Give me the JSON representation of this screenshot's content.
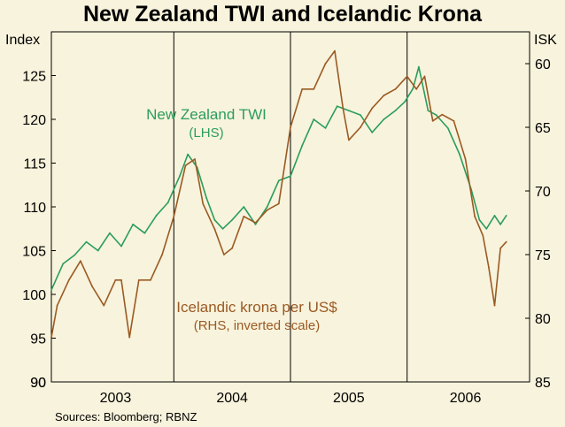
{
  "chart_data": {
    "type": "line",
    "title": "New Zealand TWI and Icelandic Krona",
    "source": "Sources: Bloomberg; RBNZ",
    "left_axis": {
      "unit": "Index",
      "min": 90,
      "max": 130,
      "ticks": [
        90,
        95,
        100,
        105,
        110,
        115,
        120,
        125
      ]
    },
    "right_axis": {
      "unit": "ISK",
      "min": 57.5,
      "max": 85,
      "inverted": true,
      "ticks": [
        60,
        65,
        70,
        75,
        80,
        85
      ]
    },
    "x_axis": {
      "min": 2002.45,
      "max": 2006.55,
      "labels": [
        "2003",
        "2004",
        "2005",
        "2006"
      ],
      "label_positions": [
        2003.0,
        2004.0,
        2005.0,
        2006.0
      ],
      "gridlines": [
        2003.5,
        2004.5,
        2005.5
      ]
    },
    "series": [
      {
        "name": "New Zealand TWI",
        "axis": "left",
        "color": "#2a9d5c",
        "label": "New Zealand TWI",
        "sublabel": "(LHS)",
        "x": [
          2002.45,
          2002.55,
          2002.65,
          2002.75,
          2002.85,
          2002.95,
          2003.05,
          2003.15,
          2003.25,
          2003.35,
          2003.45,
          2003.55,
          2003.62,
          2003.7,
          2003.78,
          2003.85,
          2003.92,
          2004.0,
          2004.1,
          2004.2,
          2004.3,
          2004.4,
          2004.5,
          2004.6,
          2004.7,
          2004.8,
          2004.9,
          2005.0,
          2005.1,
          2005.2,
          2005.3,
          2005.4,
          2005.48,
          2005.55,
          2005.6,
          2005.68,
          2005.75,
          2005.85,
          2005.95,
          2006.05,
          2006.12,
          2006.18,
          2006.25,
          2006.3,
          2006.35
        ],
        "values": [
          100.5,
          103.5,
          104.5,
          106.0,
          105.0,
          107.0,
          105.5,
          108.0,
          107.0,
          109.0,
          110.5,
          113.5,
          116.0,
          114.5,
          111.0,
          108.5,
          107.5,
          108.5,
          110.0,
          108.0,
          110.0,
          113.0,
          113.5,
          117.0,
          120.0,
          119.0,
          121.5,
          121.0,
          120.5,
          118.5,
          120.0,
          121.0,
          122.0,
          123.5,
          126.0,
          121.0,
          120.5,
          119.0,
          116.0,
          112.0,
          108.5,
          107.5,
          109.0,
          108.0,
          109.0
        ]
      },
      {
        "name": "Icelandic krona per US$",
        "axis": "right",
        "color": "#9a5a24",
        "label": "Icelandic krona per US$",
        "sublabel": "(RHS, inverted scale)",
        "x": [
          2002.45,
          2002.5,
          2002.6,
          2002.7,
          2002.8,
          2002.9,
          2003.0,
          2003.05,
          2003.12,
          2003.2,
          2003.3,
          2003.4,
          2003.5,
          2003.6,
          2003.68,
          2003.75,
          2003.85,
          2003.93,
          2004.0,
          2004.1,
          2004.2,
          2004.3,
          2004.4,
          2004.5,
          2004.6,
          2004.7,
          2004.8,
          2004.88,
          2004.95,
          2005.0,
          2005.1,
          2005.2,
          2005.3,
          2005.4,
          2005.5,
          2005.58,
          2005.65,
          2005.72,
          2005.8,
          2005.9,
          2006.0,
          2006.08,
          2006.15,
          2006.2,
          2006.25,
          2006.3,
          2006.35
        ],
        "values": [
          81.5,
          79.0,
          77.0,
          75.5,
          77.5,
          79.0,
          77.0,
          77.0,
          81.5,
          77.0,
          77.0,
          75.0,
          72.0,
          68.0,
          67.5,
          71.0,
          73.0,
          75.0,
          74.5,
          72.0,
          72.5,
          71.5,
          71.0,
          65.0,
          62.0,
          62.0,
          60.0,
          59.0,
          63.5,
          66.0,
          65.0,
          63.5,
          62.5,
          62.0,
          61.0,
          62.0,
          61.0,
          64.5,
          64.0,
          64.5,
          67.5,
          72.0,
          73.5,
          76.0,
          79.0,
          74.5,
          74.0
        ]
      }
    ]
  }
}
